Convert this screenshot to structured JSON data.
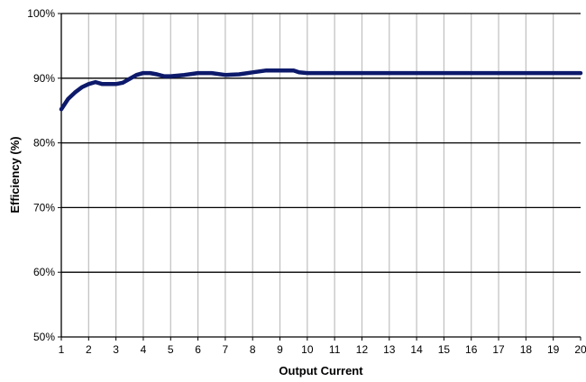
{
  "chart_data": {
    "type": "line",
    "title": "",
    "xlabel": "Output Current",
    "ylabel": "Efficiency (%)",
    "xlim": [
      1,
      20
    ],
    "ylim": [
      50,
      100
    ],
    "x_ticks": [
      "1",
      "2",
      "3",
      "4",
      "5",
      "6",
      "7",
      "8",
      "9",
      "10",
      "11",
      "12",
      "13",
      "14",
      "15",
      "16",
      "17",
      "18",
      "19",
      "20"
    ],
    "y_ticks": [
      "50%",
      "60%",
      "70%",
      "80%",
      "90%",
      "100%"
    ],
    "grid": {
      "vertical": true,
      "horizontal": true
    },
    "legend": "none",
    "series": [
      {
        "color": "#0d1a6b",
        "x": [
          1,
          1.25,
          1.5,
          1.75,
          2,
          2.25,
          2.5,
          2.75,
          3,
          3.25,
          3.5,
          3.75,
          4,
          4.25,
          4.5,
          4.75,
          5,
          5.5,
          6,
          6.5,
          7,
          7.5,
          8,
          8.5,
          9,
          9.5,
          9.7,
          10,
          11,
          12,
          13,
          14,
          15,
          16,
          17,
          18,
          19,
          20
        ],
        "y": [
          85.2,
          86.8,
          87.8,
          88.6,
          89.1,
          89.4,
          89.1,
          89.1,
          89.1,
          89.3,
          89.9,
          90.5,
          90.8,
          90.8,
          90.6,
          90.3,
          90.3,
          90.5,
          90.8,
          90.8,
          90.5,
          90.6,
          90.9,
          91.2,
          91.2,
          91.2,
          90.9,
          90.8,
          90.8,
          90.8,
          90.8,
          90.8,
          90.8,
          90.8,
          90.8,
          90.8,
          90.8,
          90.8
        ]
      }
    ]
  },
  "colors": {
    "line": "#0d1a6b",
    "major_grid": "#000000",
    "minor_grid": "#bfbfbf",
    "axis": "#000000"
  }
}
